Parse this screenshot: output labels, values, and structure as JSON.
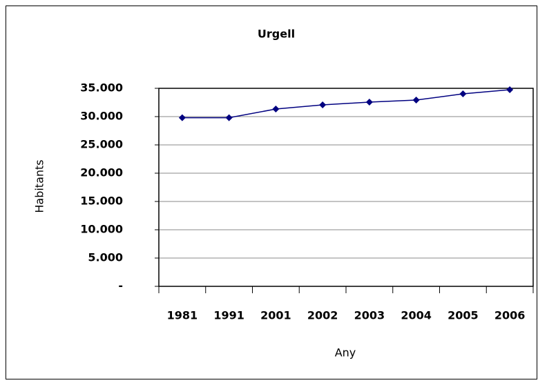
{
  "chart_data": {
    "type": "line",
    "title": "Urgell",
    "x_label": "Any",
    "y_label": "Habitants",
    "categories": [
      "1981",
      "1991",
      "2001",
      "2002",
      "2003",
      "2004",
      "2005",
      "2006"
    ],
    "series": [
      {
        "name": "Habitants",
        "color": "#000080",
        "values": [
          29800,
          29800,
          31340,
          32070,
          32560,
          32930,
          34020,
          34760
        ]
      }
    ],
    "ylim": [
      0,
      35000
    ],
    "yticks": [
      {
        "value": 0,
        "label": "-"
      },
      {
        "value": 5000,
        "label": "5.000"
      },
      {
        "value": 10000,
        "label": "10.000"
      },
      {
        "value": 15000,
        "label": "15.000"
      },
      {
        "value": 20000,
        "label": "20.000"
      },
      {
        "value": 25000,
        "label": "25.000"
      },
      {
        "value": 30000,
        "label": "30.000"
      },
      {
        "value": 35000,
        "label": "35.000"
      }
    ],
    "grid": true
  }
}
